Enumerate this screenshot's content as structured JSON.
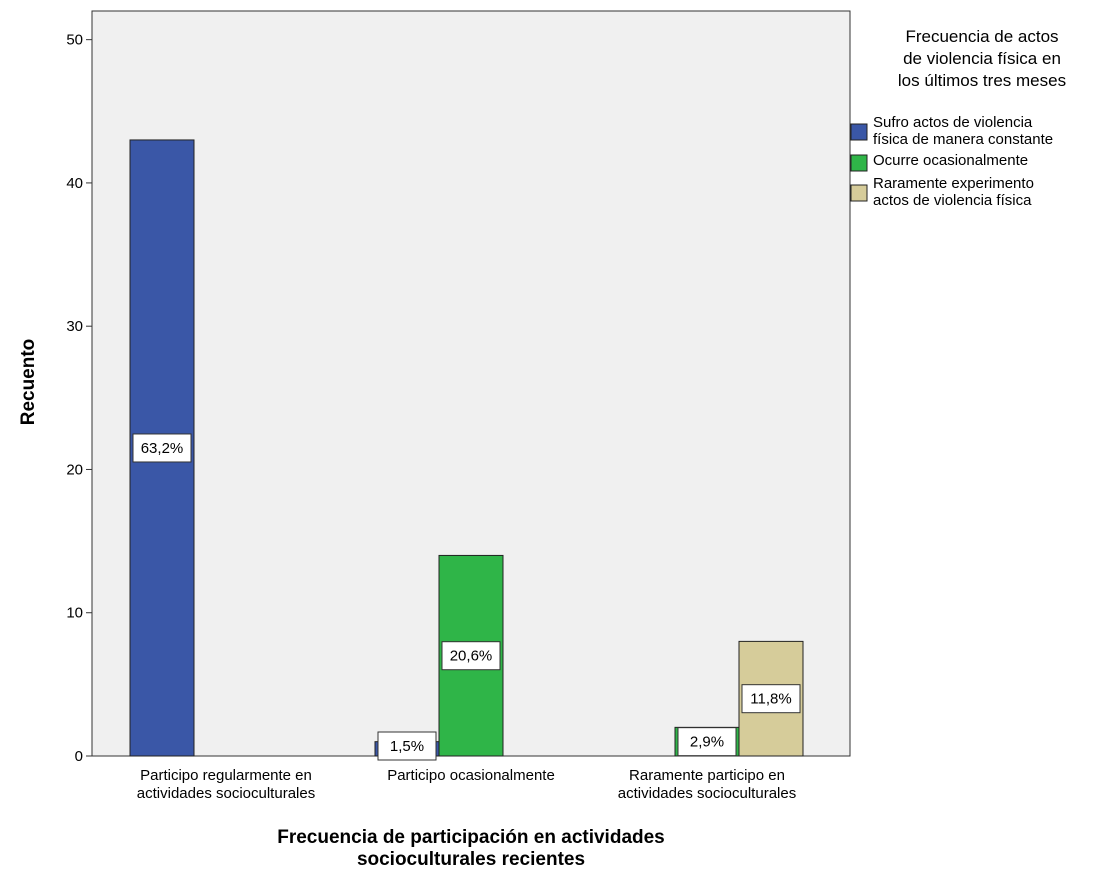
{
  "chart_data": {
    "type": "bar",
    "xlabel": "Frecuencia de participación en actividades socioculturales recientes",
    "ylabel": "Recuento",
    "ylim": [
      0,
      52
    ],
    "yticks": [
      0,
      10,
      20,
      30,
      40,
      50
    ],
    "grid": false,
    "legend_position": "right",
    "legend_title": "Frecuencia de actos de violencia física en los últimos tres meses",
    "categories": [
      "Participo regularmente en actividades socioculturales",
      "Participo ocasionalmente",
      "Raramente participo en actividades socioculturales"
    ],
    "series": [
      {
        "name": "Sufro actos de violencia física de manera constante",
        "color": "#3a57a7",
        "values": [
          43,
          1,
          0
        ],
        "labels": [
          "63,2%",
          "1,5%",
          ""
        ]
      },
      {
        "name": "Ocurre ocasionalmente",
        "color": "#2fb548",
        "values": [
          0,
          14,
          2
        ],
        "labels": [
          "",
          "20,6%",
          "2,9%"
        ]
      },
      {
        "name": "Raramente experimento actos de violencia física",
        "color": "#d6cc9a",
        "values": [
          0,
          0,
          8
        ],
        "labels": [
          "",
          "",
          "11,8%"
        ]
      }
    ]
  },
  "colors": {
    "plot_background": "#f0f0f0",
    "frame": "#333333"
  }
}
